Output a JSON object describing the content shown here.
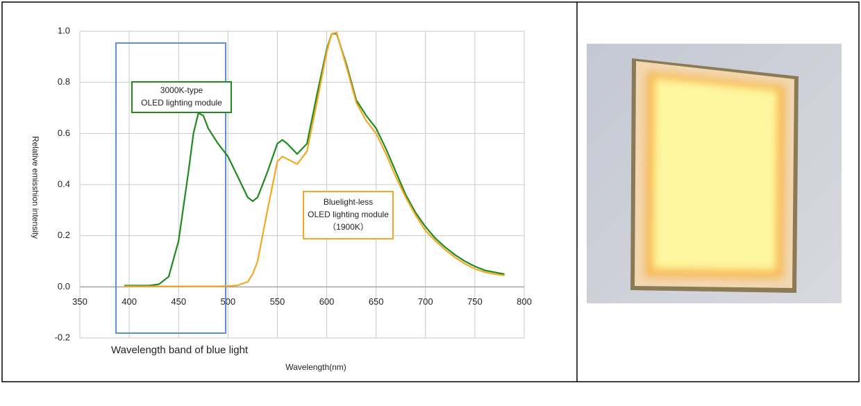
{
  "chart_data": {
    "type": "line",
    "x_label": "Wavelength(nm)",
    "y_label": "Relative emisshion intensity",
    "x": [
      395,
      400,
      410,
      420,
      430,
      440,
      450,
      460,
      465,
      470,
      475,
      480,
      490,
      500,
      510,
      520,
      525,
      530,
      540,
      550,
      555,
      560,
      570,
      580,
      590,
      600,
      605,
      610,
      620,
      630,
      640,
      650,
      660,
      670,
      680,
      690,
      700,
      710,
      720,
      730,
      740,
      750,
      760,
      770,
      780
    ],
    "series": [
      {
        "color": "#1e8a1e",
        "values": [
          0.005,
          0.005,
          0.005,
          0.005,
          0.01,
          0.04,
          0.18,
          0.45,
          0.6,
          0.68,
          0.67,
          0.62,
          0.56,
          0.51,
          0.43,
          0.35,
          0.335,
          0.35,
          0.45,
          0.56,
          0.575,
          0.56,
          0.52,
          0.56,
          0.75,
          0.93,
          0.99,
          0.99,
          0.87,
          0.73,
          0.67,
          0.62,
          0.54,
          0.45,
          0.36,
          0.29,
          0.235,
          0.19,
          0.155,
          0.125,
          0.1,
          0.08,
          0.065,
          0.057,
          0.05
        ]
      },
      {
        "color": "#f5a623",
        "values": [
          0.002,
          0.002,
          0.002,
          0.002,
          0.002,
          0.002,
          0.002,
          0.002,
          0.002,
          0.002,
          0.002,
          0.002,
          0.002,
          0.003,
          0.006,
          0.02,
          0.05,
          0.1,
          0.3,
          0.49,
          0.51,
          0.5,
          0.48,
          0.53,
          0.72,
          0.92,
          0.99,
          0.995,
          0.86,
          0.72,
          0.65,
          0.6,
          0.52,
          0.43,
          0.35,
          0.28,
          0.22,
          0.18,
          0.145,
          0.115,
          0.09,
          0.07,
          0.058,
          0.05,
          0.045
        ]
      }
    ],
    "xlim": [
      350,
      800
    ],
    "xticks": [
      350,
      400,
      450,
      500,
      550,
      600,
      650,
      700,
      750,
      800
    ],
    "ylim": [
      -0.2,
      1.0
    ],
    "yticks": [
      {
        "value": -0.2,
        "label": "-0.2"
      },
      {
        "value": 0,
        "label": "0.0"
      },
      0.2,
      0.4,
      0.6,
      0.8,
      {
        "value": 1,
        "label": "1.0"
      }
    ],
    "grid": true,
    "annotations": [
      {
        "lines": [
          "3000K-type",
          "OLED lighting module"
        ]
      },
      {
        "lines": [
          "Bluelight-less",
          "OLED lighting module",
          "（1900K）"
        ]
      },
      {
        "lines": [
          "Wavelength band of blue light"
        ]
      }
    ]
  }
}
